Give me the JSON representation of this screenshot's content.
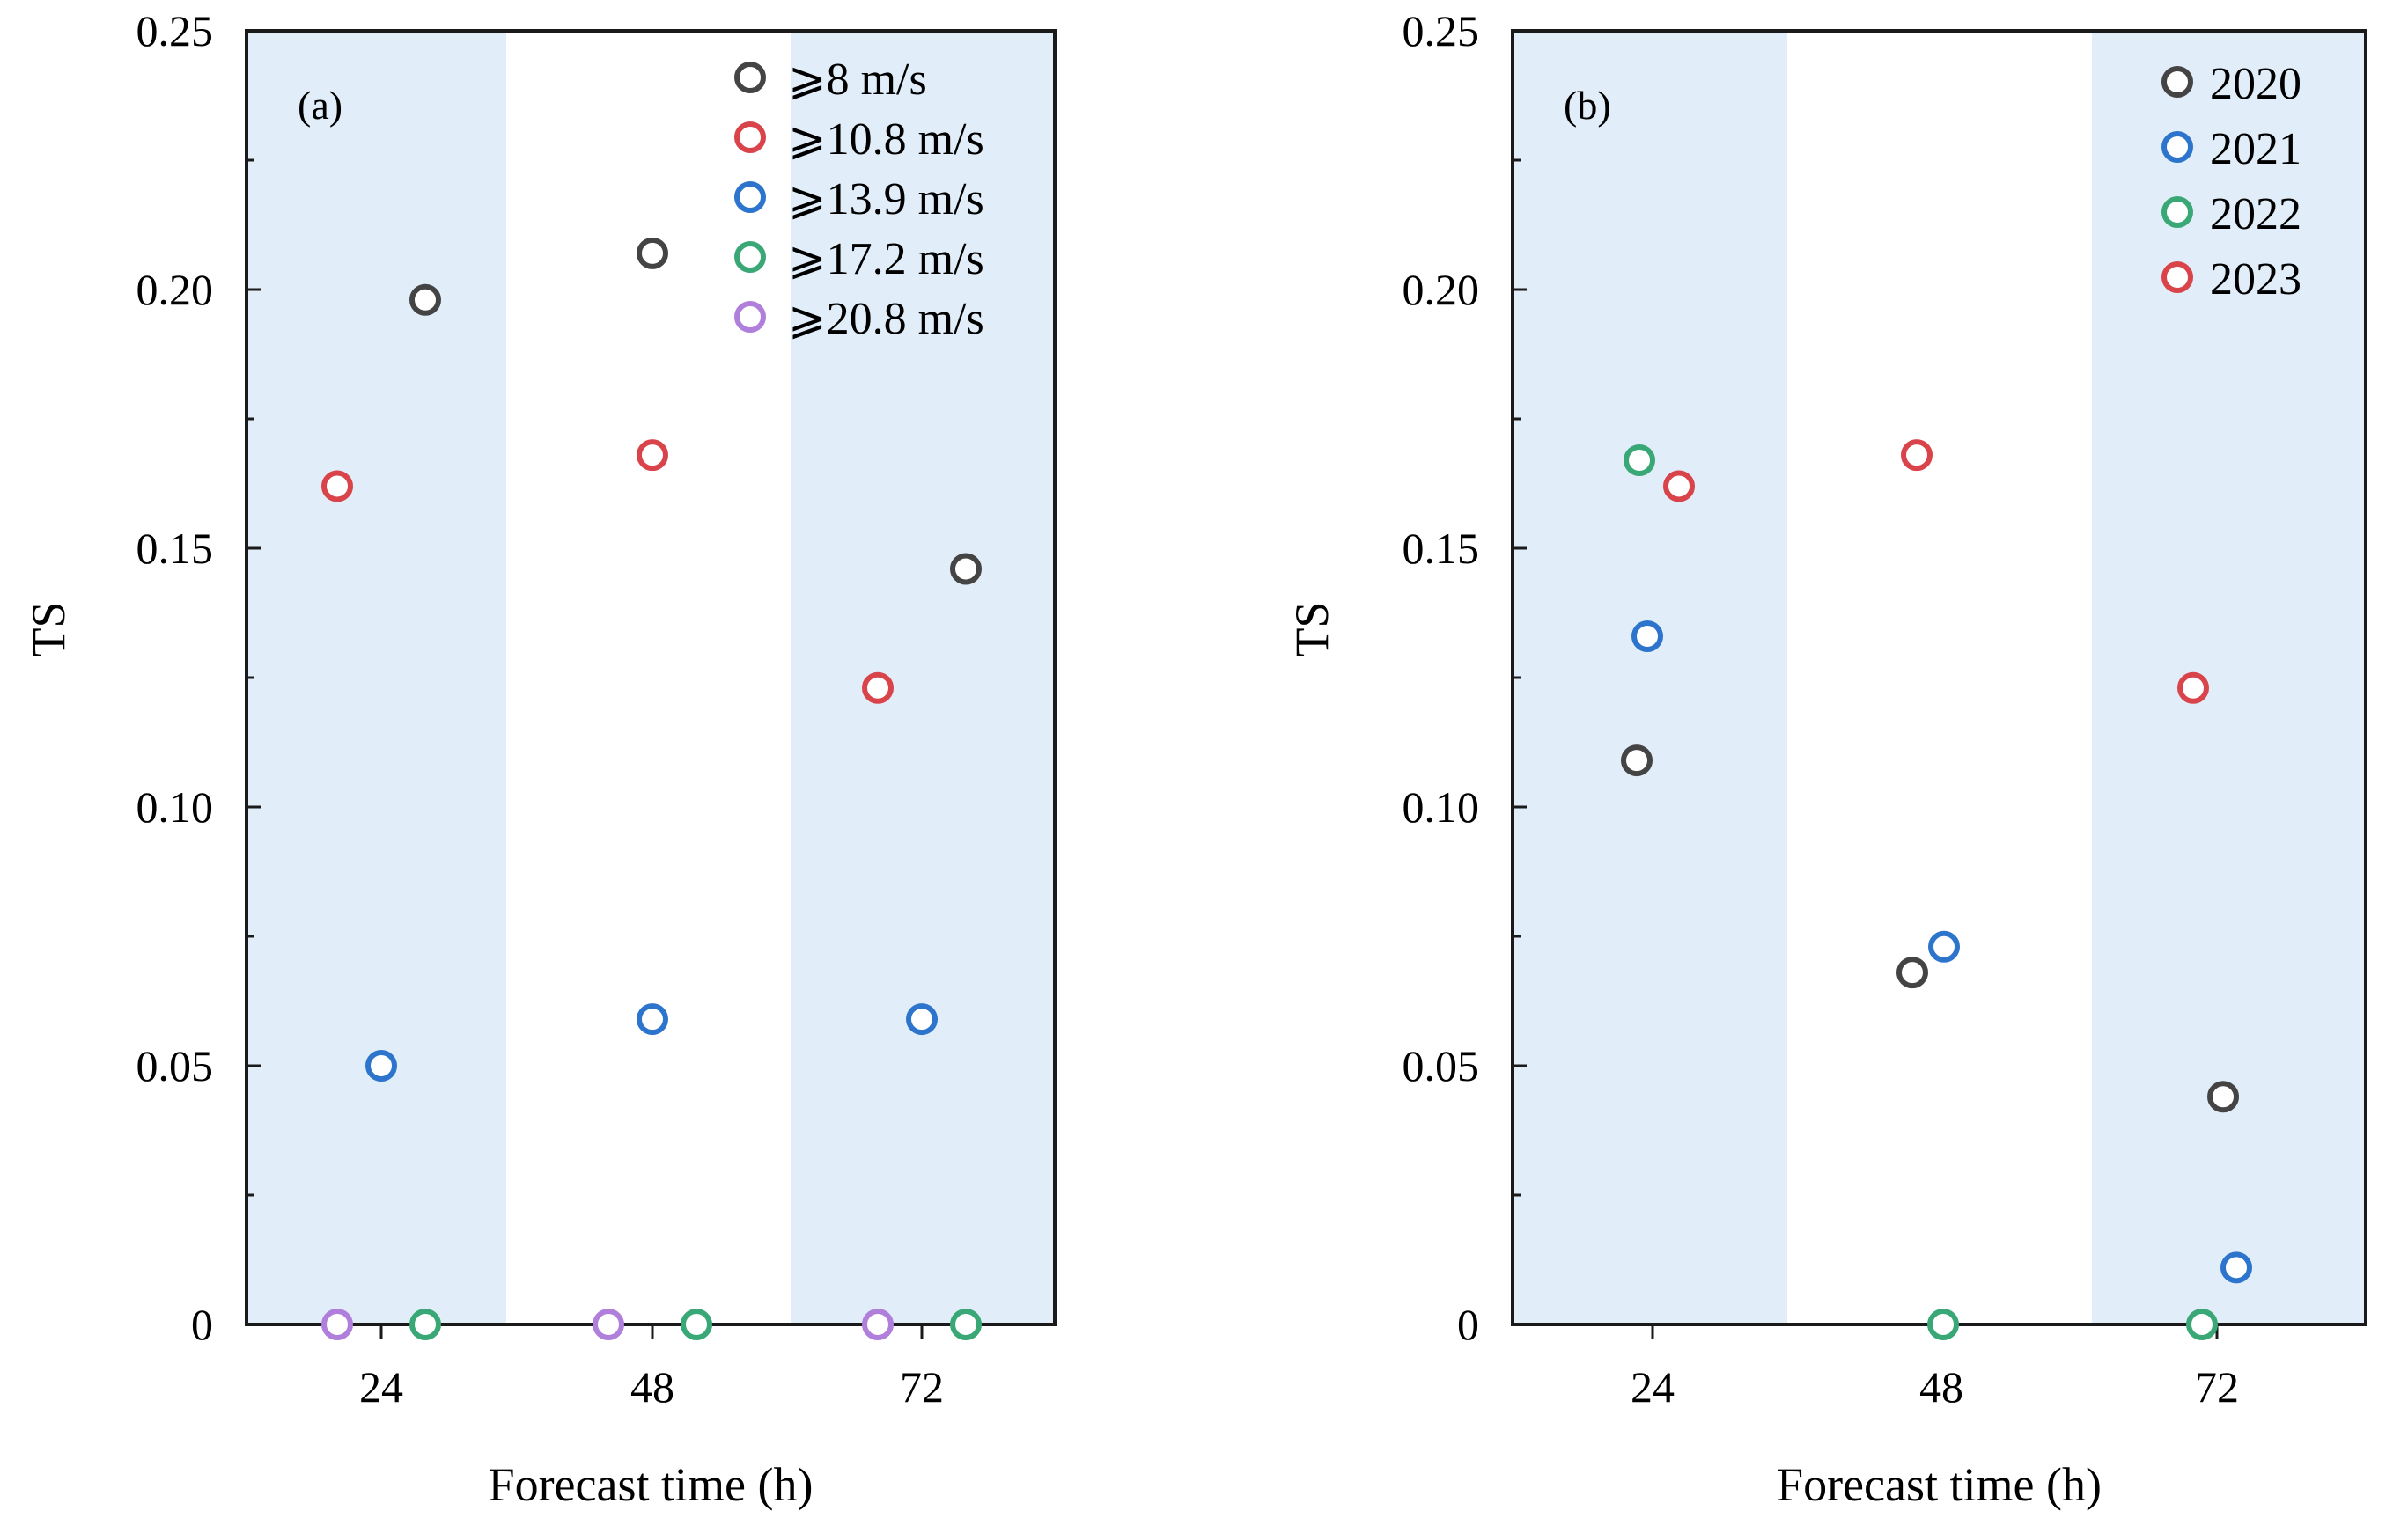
{
  "colors": {
    "band": "#e1edf8",
    "frame": "#1a1a1a",
    "black": "#444444",
    "red": "#d9444b",
    "blue": "#2c74cc",
    "green": "#3aa876",
    "purple": "#b07fdb"
  },
  "chart_data": [
    {
      "type": "scatter",
      "panel_label": "(a)",
      "xlabel": "Forecast time (h)",
      "ylabel": "TS",
      "ylim": [
        0,
        0.25
      ],
      "yticks": [
        "0",
        "0.05",
        "0.10",
        "0.15",
        "0.20",
        "0.25"
      ],
      "yticks_values": [
        0,
        0.05,
        0.1,
        0.15,
        0.2,
        0.25
      ],
      "categories": [
        "24",
        "48",
        "72"
      ],
      "shaded_categories": [
        "24",
        "72"
      ],
      "legend_position": "top-right",
      "series": [
        {
          "name": "⩾8 m/s",
          "color": "black",
          "x": [
            "24",
            "48",
            "72"
          ],
          "y": [
            0.198,
            0.207,
            0.146
          ]
        },
        {
          "name": "⩾10.8 m/s",
          "color": "red",
          "x": [
            "24",
            "48",
            "72"
          ],
          "y": [
            0.162,
            0.168,
            0.123
          ]
        },
        {
          "name": "⩾13.9 m/s",
          "color": "blue",
          "x": [
            "24",
            "48",
            "72"
          ],
          "y": [
            0.05,
            0.059,
            0.059
          ]
        },
        {
          "name": "⩾17.2 m/s",
          "color": "green",
          "x": [
            "24",
            "48",
            "72"
          ],
          "y": [
            0,
            0,
            0
          ]
        },
        {
          "name": "⩾20.8 m/s",
          "color": "purple",
          "x": [
            "24",
            "48",
            "72"
          ],
          "y": [
            0,
            0,
            0
          ]
        }
      ]
    },
    {
      "type": "scatter",
      "panel_label": "(b)",
      "xlabel": "Forecast time (h)",
      "ylabel": "TS",
      "ylim": [
        0,
        0.25
      ],
      "yticks": [
        "0",
        "0.05",
        "0.10",
        "0.15",
        "0.20",
        "0.25"
      ],
      "yticks_values": [
        0,
        0.05,
        0.1,
        0.15,
        0.2,
        0.25
      ],
      "categories": [
        "24",
        "48",
        "72"
      ],
      "shaded_categories": [
        "24",
        "72"
      ],
      "legend_position": "top-right",
      "series": [
        {
          "name": "2020",
          "color": "black",
          "x": [
            "24",
            "48",
            "72"
          ],
          "y": [
            0.109,
            0.068,
            0.044
          ]
        },
        {
          "name": "2021",
          "color": "blue",
          "x": [
            "24",
            "48",
            "72"
          ],
          "y": [
            0.133,
            0.073,
            0.011
          ]
        },
        {
          "name": "2022",
          "color": "green",
          "x": [
            "24",
            "48",
            "72"
          ],
          "y": [
            0.167,
            0,
            0
          ]
        },
        {
          "name": "2023",
          "color": "red",
          "x": [
            "24",
            "48",
            "72"
          ],
          "y": [
            0.162,
            0.168,
            0.123
          ]
        }
      ]
    }
  ]
}
